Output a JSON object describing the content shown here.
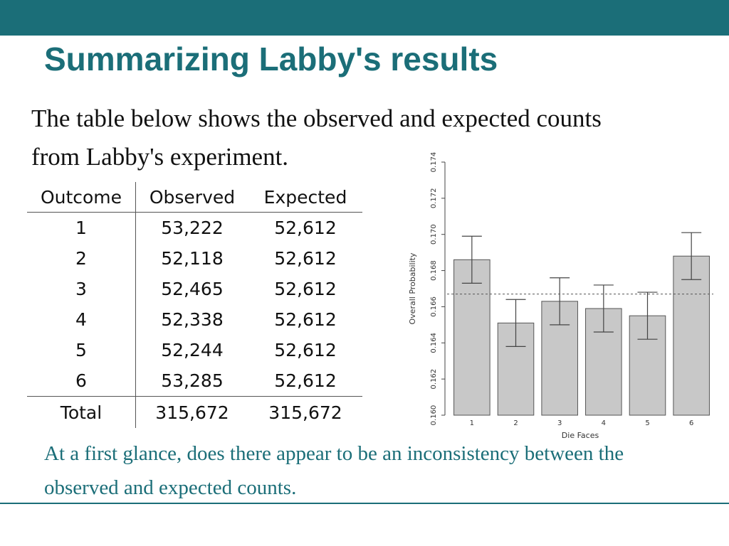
{
  "slide": {
    "title": "Summarizing Labby's results",
    "intro": "The table below shows the observed and expected counts from Labby's experiment.",
    "question": "At a first glance, does there appear to be an inconsistency between the observed and expected counts."
  },
  "colors": {
    "accent": "#1b6e78",
    "bar_fill": "#c8c8c8",
    "bar_stroke": "#555555"
  },
  "table": {
    "headers": [
      "Outcome",
      "Observed",
      "Expected"
    ],
    "rows": [
      [
        "1",
        "53,222",
        "52,612"
      ],
      [
        "2",
        "52,118",
        "52,612"
      ],
      [
        "3",
        "52,465",
        "52,612"
      ],
      [
        "4",
        "52,338",
        "52,612"
      ],
      [
        "5",
        "52,244",
        "52,612"
      ],
      [
        "6",
        "53,285",
        "52,612"
      ]
    ],
    "total": [
      "Total",
      "315,672",
      "315,672"
    ]
  },
  "chart_data": {
    "type": "bar",
    "title": "",
    "xlabel": "Die Faces",
    "ylabel": "Overall Probability",
    "categories": [
      "1",
      "2",
      "3",
      "4",
      "5",
      "6"
    ],
    "values": [
      0.1686,
      0.1651,
      0.1663,
      0.1659,
      0.1655,
      0.1688
    ],
    "error_low": [
      0.1673,
      0.1638,
      0.165,
      0.1646,
      0.1642,
      0.1675
    ],
    "error_high": [
      0.1699,
      0.1664,
      0.1676,
      0.1672,
      0.1668,
      0.1701
    ],
    "reference_line": 0.1667,
    "ylim": [
      0.16,
      0.174
    ],
    "yticks": [
      "0.160",
      "0.162",
      "0.164",
      "0.166",
      "0.168",
      "0.170",
      "0.172",
      "0.174"
    ],
    "grid": false,
    "legend": "none"
  }
}
